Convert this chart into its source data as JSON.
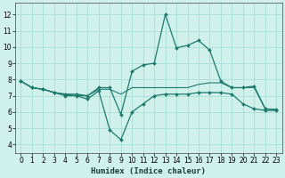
{
  "xlabel": "Humidex (Indice chaleur)",
  "xlim": [
    -0.5,
    23.5
  ],
  "ylim": [
    3.5,
    12.7
  ],
  "yticks": [
    4,
    5,
    6,
    7,
    8,
    9,
    10,
    11,
    12
  ],
  "xticks": [
    0,
    1,
    2,
    3,
    4,
    5,
    6,
    7,
    8,
    9,
    10,
    11,
    12,
    13,
    14,
    15,
    16,
    17,
    18,
    19,
    20,
    21,
    22,
    23
  ],
  "bg_color": "#cff0eb",
  "grid_color": "#a8ddd7",
  "line_color": "#1e7a6d",
  "lines": [
    {
      "x": [
        0,
        1,
        2,
        3,
        4,
        5,
        6,
        7,
        8,
        9,
        10,
        11,
        12,
        13,
        14,
        15,
        16,
        17,
        18,
        19,
        20,
        21,
        22,
        23
      ],
      "y": [
        7.9,
        7.5,
        7.4,
        7.2,
        7.1,
        7.1,
        7.0,
        7.5,
        7.5,
        5.85,
        8.5,
        8.9,
        9.0,
        12.0,
        9.95,
        10.1,
        10.4,
        9.8,
        7.9,
        7.5,
        7.5,
        7.6,
        6.2,
        6.15
      ],
      "marker": "D",
      "markersize": 2.0,
      "linewidth": 0.9
    },
    {
      "x": [
        0,
        1,
        2,
        3,
        4,
        5,
        6,
        7,
        8,
        9,
        10,
        11,
        12,
        13,
        14,
        15,
        16,
        17,
        18,
        19,
        20,
        21,
        22,
        23
      ],
      "y": [
        7.9,
        7.5,
        7.4,
        7.2,
        7.0,
        7.0,
        6.8,
        7.3,
        4.9,
        4.3,
        6.0,
        6.5,
        7.0,
        7.1,
        7.1,
        7.1,
        7.2,
        7.2,
        7.2,
        7.1,
        6.5,
        6.2,
        6.1,
        6.1
      ],
      "marker": "D",
      "markersize": 2.0,
      "linewidth": 0.9
    },
    {
      "x": [
        0,
        1,
        2,
        3,
        4,
        5,
        6,
        7,
        8,
        9,
        10,
        11,
        12,
        13,
        14,
        15,
        16,
        17,
        18,
        19,
        20,
        21,
        22,
        23
      ],
      "y": [
        7.9,
        7.5,
        7.4,
        7.2,
        7.1,
        7.0,
        7.0,
        7.4,
        7.4,
        7.1,
        7.5,
        7.5,
        7.5,
        7.5,
        7.5,
        7.5,
        7.7,
        7.8,
        7.8,
        7.5,
        7.5,
        7.5,
        6.2,
        6.15
      ],
      "marker": "None",
      "markersize": 0,
      "linewidth": 0.8
    }
  ]
}
